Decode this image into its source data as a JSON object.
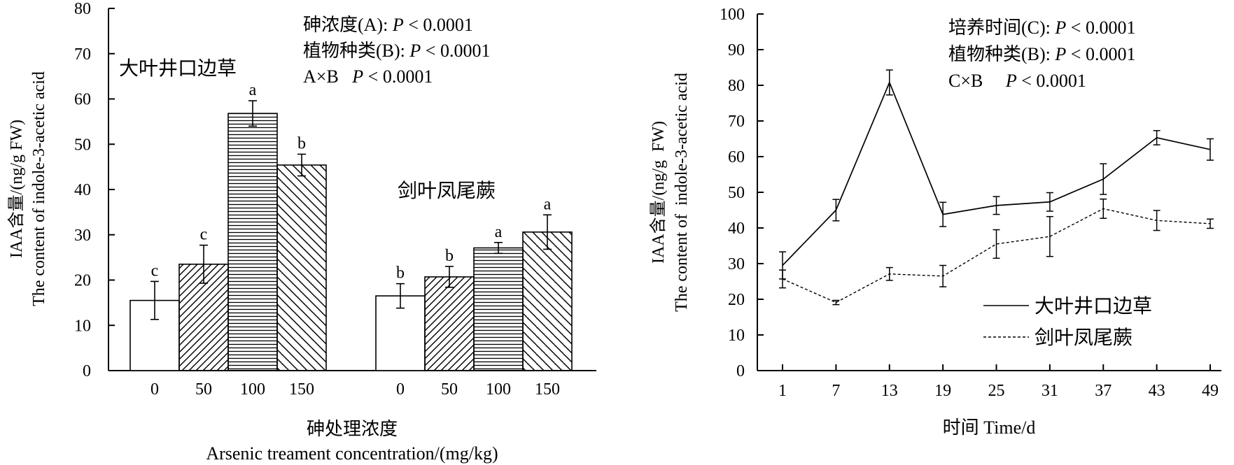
{
  "chart_data": [
    {
      "type": "bar",
      "y_ticks": [
        "0",
        "10",
        "20",
        "30",
        "40",
        "50",
        "60",
        "70",
        "80"
      ],
      "ylim": [
        0,
        80
      ],
      "ylabel_cn": "IAA含量/(ng/g FW)",
      "ylabel_en": "The content of  indole-3-acetic acid",
      "xlabel_cn": "砷处理浓度",
      "xlabel_en": "Arsenic treament concentration/(mg/kg)",
      "stats": [
        "砷浓度(A): ",
        "植物种类(B): ",
        "A×B   "
      ],
      "stat_p": "P",
      "stat_value": " < 0.0001",
      "categories": [
        "0",
        "50",
        "100",
        "150"
      ],
      "groups": [
        {
          "name": "大叶井口边草",
          "values": [
            15.5,
            23.5,
            56.8,
            45.4
          ],
          "errors": [
            4.2,
            4.2,
            2.8,
            2.4
          ],
          "labels": [
            "c",
            "c",
            "a",
            "b"
          ]
        },
        {
          "name": "剑叶凤尾蕨",
          "values": [
            16.5,
            20.7,
            27.1,
            30.6
          ],
          "errors": [
            2.7,
            2.3,
            1.2,
            3.8
          ],
          "labels": [
            "b",
            "b",
            "a",
            "a"
          ]
        }
      ],
      "fill_patterns": [
        "none",
        "diagonal",
        "horizontal",
        "diagonal-wide"
      ],
      "grid": false
    },
    {
      "type": "line",
      "x": [
        1,
        7,
        13,
        19,
        25,
        31,
        37,
        43,
        49
      ],
      "x_ticks": [
        "1",
        "7",
        "13",
        "19",
        "25",
        "31",
        "37",
        "43",
        "49"
      ],
      "y_ticks": [
        "0",
        "10",
        "20",
        "30",
        "40",
        "50",
        "60",
        "70",
        "80",
        "90",
        "100"
      ],
      "ylim": [
        0,
        100
      ],
      "ylabel_cn": "IAA含量/(ng/g  FW)",
      "ylabel_en": "The content of  indole-3-acetic acid",
      "xlabel": "时间 Time/d",
      "stats": [
        "培养时间(C): ",
        "植物种类(B): ",
        "C×B     "
      ],
      "stat_p": "P",
      "stat_value": " < 0.0001",
      "series": [
        {
          "name": "大叶井口边草",
          "line_style": "solid",
          "values": [
            29.5,
            45.0,
            80.8,
            43.8,
            46.3,
            47.3,
            53.7,
            65.3,
            62.0
          ],
          "errors": [
            3.8,
            3.0,
            3.5,
            3.4,
            2.5,
            2.6,
            4.3,
            2.0,
            3.0
          ]
        },
        {
          "name": "剑叶凤尾蕨",
          "line_style": "dashed",
          "values": [
            25.7,
            19.1,
            27.1,
            26.5,
            35.5,
            37.6,
            45.4,
            42.1,
            41.2
          ],
          "errors": [
            2.5,
            0.6,
            1.8,
            3.0,
            4.0,
            5.6,
            2.7,
            2.8,
            1.3
          ]
        }
      ],
      "legend_position": "lower-right",
      "grid": false
    }
  ]
}
